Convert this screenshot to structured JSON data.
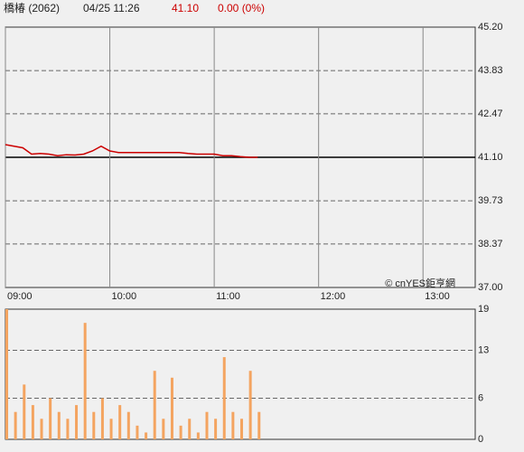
{
  "header": {
    "name": "橋椿 (2062)",
    "time": "04/25 11:26",
    "price": "41.10",
    "change": "0.00 (0%)"
  },
  "chart_data": [
    {
      "type": "line",
      "color": "#cc0000",
      "reference_line": 41.1,
      "x": [
        "09:00",
        "09:05",
        "09:10",
        "09:15",
        "09:20",
        "09:25",
        "09:30",
        "09:35",
        "09:40",
        "09:45",
        "09:50",
        "09:55",
        "10:00",
        "10:05",
        "10:10",
        "10:15",
        "10:20",
        "10:25",
        "10:30",
        "10:35",
        "10:40",
        "10:45",
        "10:50",
        "10:55",
        "11:00",
        "11:05",
        "11:10",
        "11:15",
        "11:20",
        "11:25"
      ],
      "values": [
        41.5,
        41.45,
        41.4,
        41.2,
        41.22,
        41.2,
        41.15,
        41.18,
        41.17,
        41.2,
        41.3,
        41.45,
        41.3,
        41.25,
        41.25,
        41.25,
        41.25,
        41.25,
        41.25,
        41.25,
        41.25,
        41.22,
        41.2,
        41.2,
        41.2,
        41.15,
        41.15,
        41.12,
        41.1,
        41.1
      ],
      "xlim": [
        "09:00",
        "13:30"
      ],
      "xticks": [
        "09:00",
        "10:00",
        "11:00",
        "12:00",
        "13:00"
      ],
      "ylim": [
        37.0,
        45.2
      ],
      "yticks": [
        {
          "value": 45.2,
          "label": "45.20"
        },
        {
          "value": 43.83,
          "label": "43.83"
        },
        {
          "value": 42.47,
          "label": "42.47"
        },
        {
          "value": 41.1,
          "label": "41.10"
        },
        {
          "value": 39.73,
          "label": "39.73"
        },
        {
          "value": 38.37,
          "label": "38.37"
        },
        {
          "value": 37.0,
          "label": "37.00"
        }
      ],
      "annotation": "© cnYES鉅亨網"
    },
    {
      "type": "bar",
      "color": "#f4a460",
      "x": [
        "09:00",
        "09:05",
        "09:10",
        "09:15",
        "09:20",
        "09:25",
        "09:30",
        "09:35",
        "09:40",
        "09:45",
        "09:50",
        "09:55",
        "10:00",
        "10:05",
        "10:10",
        "10:15",
        "10:20",
        "10:25",
        "10:30",
        "10:35",
        "10:40",
        "10:45",
        "10:50",
        "10:55",
        "11:00",
        "11:05",
        "11:10",
        "11:15",
        "11:20",
        "11:25"
      ],
      "values": [
        19,
        4,
        8,
        5,
        3,
        6,
        4,
        3,
        5,
        17,
        4,
        6,
        3,
        5,
        4,
        2,
        1,
        10,
        3,
        9,
        2,
        3,
        1,
        4,
        3,
        12,
        4,
        3,
        10,
        4
      ],
      "xlim": [
        "09:00",
        "13:30"
      ],
      "ylim": [
        0,
        19
      ],
      "yticks": [
        0,
        6,
        13,
        19
      ]
    }
  ]
}
